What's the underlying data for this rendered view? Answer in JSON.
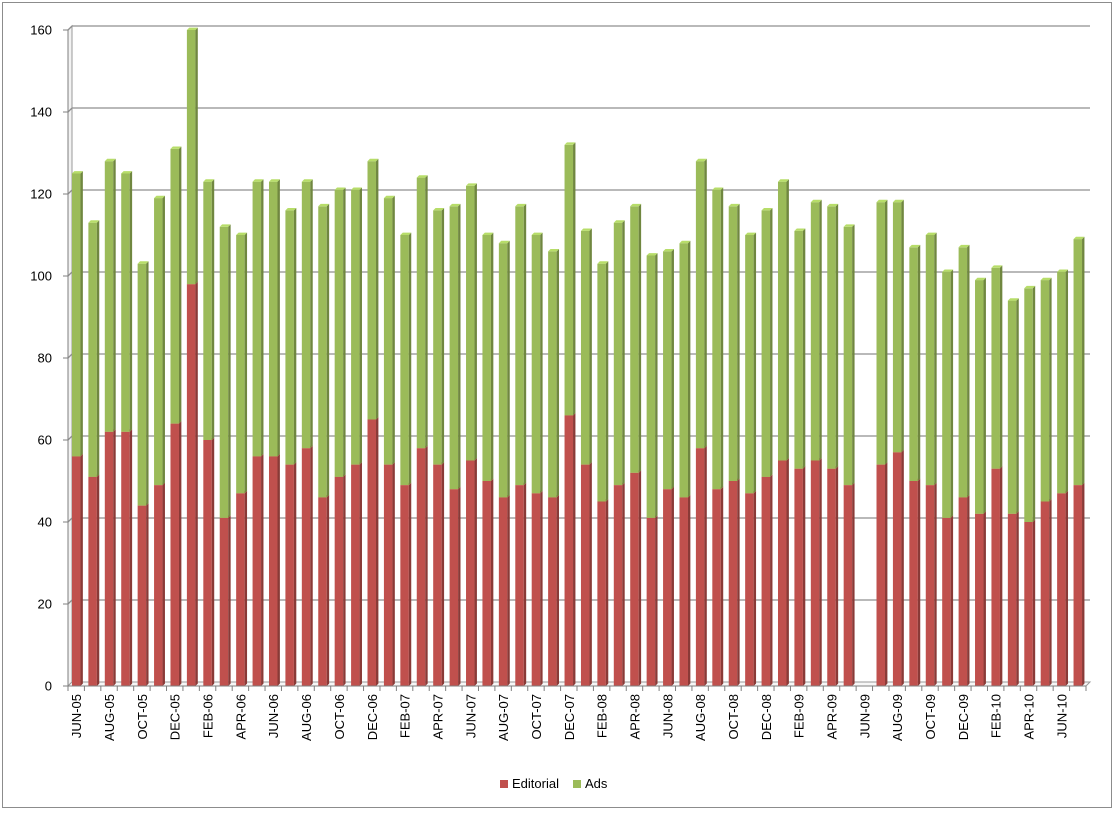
{
  "chart_data": {
    "type": "bar",
    "stacked": true,
    "title": "",
    "xlabel": "",
    "ylabel": "",
    "ylim": [
      0,
      160
    ],
    "yticks": [
      0,
      20,
      40,
      60,
      80,
      100,
      120,
      140,
      160
    ],
    "grid": true,
    "legend_position": "bottom",
    "categories": [
      "JUN-05",
      "JUL-05",
      "AUG-05",
      "SEP-05",
      "OCT-05",
      "NOV-05",
      "DEC-05",
      "JAN-06",
      "FEB-06",
      "MAR-06",
      "APR-06",
      "MAY-06",
      "JUN-06",
      "JUL-06",
      "AUG-06",
      "SEP-06",
      "OCT-06",
      "NOV-06",
      "DEC-06",
      "JAN-07",
      "FEB-07",
      "MAR-07",
      "APR-07",
      "MAY-07",
      "JUN-07",
      "JUL-07",
      "AUG-07",
      "SEP-07",
      "OCT-07",
      "NOV-07",
      "DEC-07",
      "JAN-08",
      "FEB-08",
      "MAR-08",
      "APR-08",
      "MAY-08",
      "JUN-08",
      "JUL-08",
      "AUG-08",
      "SEP-08",
      "OCT-08",
      "NOV-08",
      "DEC-08",
      "JAN-09",
      "FEB-09",
      "MAR-09",
      "APR-09",
      "MAY-09",
      "JUN-09",
      "JUL-09",
      "AUG-09",
      "SEP-09",
      "OCT-09",
      "NOV-09",
      "DEC-09",
      "JAN-10",
      "FEB-10",
      "MAR-10",
      "APR-10",
      "MAY-10",
      "JUN-10",
      "JUL-10"
    ],
    "labeled_categories": [
      "JUN-05",
      "AUG-05",
      "OCT-05",
      "DEC-05",
      "FEB-06",
      "APR-06",
      "JUN-06",
      "AUG-06",
      "OCT-06",
      "DEC-06",
      "FEB-07",
      "APR-07",
      "JUN-07",
      "AUG-07",
      "OCT-07",
      "DEC-07",
      "FEB-08",
      "APR-08",
      "JUN-08",
      "AUG-08",
      "OCT-08",
      "DEC-08",
      "FEB-09",
      "APR-09",
      "JUN-09",
      "AUG-09",
      "OCT-09",
      "DEC-09",
      "FEB-10",
      "APR-10",
      "JUN-10"
    ],
    "series": [
      {
        "name": "Editorial",
        "color": "#c0504d",
        "values": [
          56,
          51,
          62,
          62,
          44,
          49,
          64,
          98,
          60,
          41,
          47,
          56,
          56,
          54,
          58,
          46,
          51,
          54,
          65,
          54,
          49,
          58,
          54,
          48,
          55,
          50,
          46,
          49,
          47,
          46,
          66,
          54,
          45,
          49,
          52,
          41,
          48,
          46,
          58,
          48,
          50,
          47,
          51,
          55,
          53,
          55,
          53,
          49,
          0,
          54,
          57,
          50,
          49,
          41,
          46,
          42,
          53,
          42,
          40,
          45,
          47,
          49
        ]
      },
      {
        "name": "Ads",
        "color": "#9bbb59",
        "values": [
          69,
          62,
          66,
          63,
          59,
          70,
          67,
          62,
          63,
          71,
          63,
          67,
          67,
          62,
          65,
          71,
          70,
          67,
          63,
          65,
          61,
          66,
          62,
          69,
          67,
          60,
          62,
          68,
          63,
          60,
          66,
          57,
          58,
          64,
          65,
          64,
          58,
          62,
          70,
          73,
          67,
          63,
          65,
          68,
          58,
          63,
          64,
          63,
          0,
          64,
          61,
          57,
          61,
          60,
          61,
          57,
          49,
          52,
          57,
          54,
          54,
          60
        ]
      }
    ]
  }
}
